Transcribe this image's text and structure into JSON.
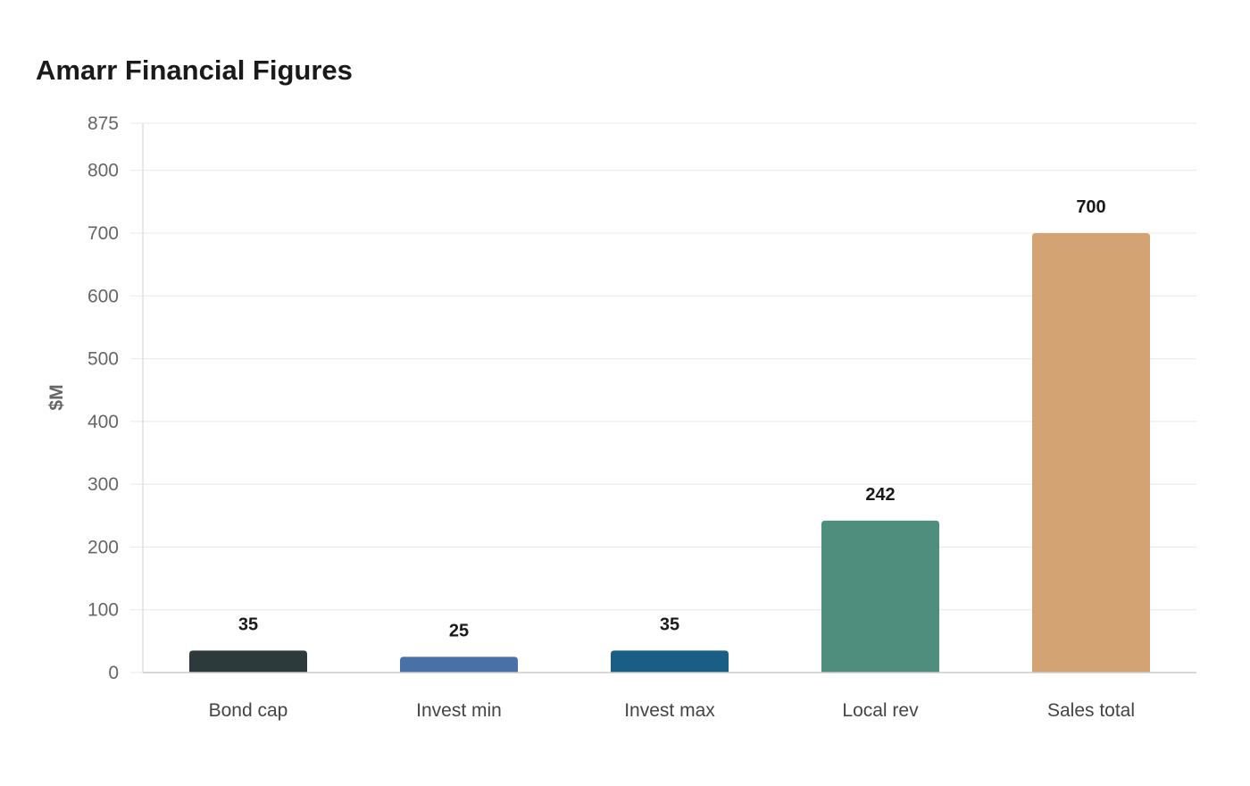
{
  "chart_data": {
    "type": "bar",
    "title": "Amarr Financial Figures",
    "xlabel": "",
    "ylabel": "$M",
    "categories": [
      "Bond cap",
      "Invest min",
      "Invest max",
      "Local rev",
      "Sales total"
    ],
    "values": [
      35,
      25,
      35,
      242,
      700
    ],
    "value_labels": [
      "35",
      "25",
      "35",
      "242",
      "700"
    ],
    "colors": [
      "#2d3a3c",
      "#4a70a8",
      "#1b5e85",
      "#4f8d7c",
      "#d4a373"
    ],
    "ylim": [
      0,
      875
    ],
    "yticks": [
      0,
      100,
      200,
      300,
      400,
      500,
      600,
      700,
      800,
      875
    ],
    "grid": true,
    "legend": "none"
  }
}
